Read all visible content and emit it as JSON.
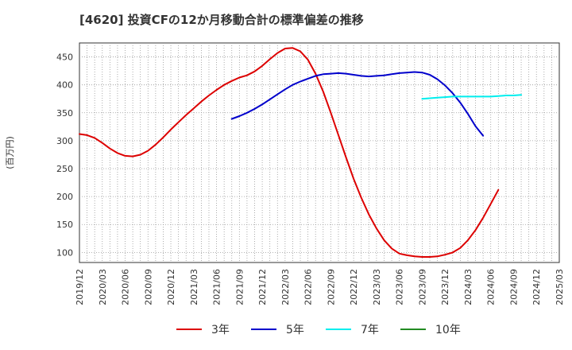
{
  "chart_data": {
    "type": "line",
    "title": "[4620]  投資CFの12か月移動合計の標準偏差の推移",
    "ylabel": "(百万円)",
    "xlabel": "",
    "ylim": [
      82,
      475
    ],
    "yticks": [
      100,
      150,
      200,
      250,
      300,
      350,
      400,
      450
    ],
    "grid": true,
    "legend_position": "bottom",
    "x_ticks": [
      "2019/12",
      "2020/03",
      "2020/06",
      "2020/09",
      "2020/12",
      "2021/03",
      "2021/06",
      "2021/09",
      "2021/12",
      "2022/03",
      "2022/06",
      "2022/09",
      "2022/12",
      "2023/03",
      "2023/06",
      "2023/09",
      "2023/12",
      "2024/03",
      "2024/06",
      "2024/09",
      "2024/12",
      "2025/03"
    ],
    "series": [
      {
        "name": "3年",
        "color": "#dd0000",
        "points": [
          [
            "2019/12",
            312
          ],
          [
            "2020/01",
            310
          ],
          [
            "2020/02",
            305
          ],
          [
            "2020/03",
            296
          ],
          [
            "2020/04",
            286
          ],
          [
            "2020/05",
            278
          ],
          [
            "2020/06",
            273
          ],
          [
            "2020/07",
            272
          ],
          [
            "2020/08",
            275
          ],
          [
            "2020/09",
            282
          ],
          [
            "2020/10",
            293
          ],
          [
            "2020/11",
            306
          ],
          [
            "2020/12",
            320
          ],
          [
            "2021/01",
            333
          ],
          [
            "2021/02",
            346
          ],
          [
            "2021/03",
            358
          ],
          [
            "2021/04",
            370
          ],
          [
            "2021/05",
            381
          ],
          [
            "2021/06",
            391
          ],
          [
            "2021/07",
            400
          ],
          [
            "2021/08",
            407
          ],
          [
            "2021/09",
            413
          ],
          [
            "2021/10",
            417
          ],
          [
            "2021/11",
            424
          ],
          [
            "2021/12",
            434
          ],
          [
            "2022/01",
            446
          ],
          [
            "2022/02",
            457
          ],
          [
            "2022/03",
            465
          ],
          [
            "2022/04",
            466
          ],
          [
            "2022/05",
            460
          ],
          [
            "2022/06",
            445
          ],
          [
            "2022/07",
            420
          ],
          [
            "2022/08",
            388
          ],
          [
            "2022/09",
            350
          ],
          [
            "2022/10",
            310
          ],
          [
            "2022/11",
            270
          ],
          [
            "2022/12",
            232
          ],
          [
            "2023/01",
            198
          ],
          [
            "2023/02",
            168
          ],
          [
            "2023/03",
            143
          ],
          [
            "2023/04",
            122
          ],
          [
            "2023/05",
            107
          ],
          [
            "2023/06",
            98
          ],
          [
            "2023/07",
            95
          ],
          [
            "2023/08",
            93
          ],
          [
            "2023/09",
            92
          ],
          [
            "2023/10",
            92
          ],
          [
            "2023/11",
            93
          ],
          [
            "2023/12",
            96
          ],
          [
            "2024/01",
            100
          ],
          [
            "2024/02",
            108
          ],
          [
            "2024/03",
            122
          ],
          [
            "2024/04",
            140
          ],
          [
            "2024/05",
            162
          ],
          [
            "2024/06",
            187
          ],
          [
            "2024/07",
            212
          ]
        ]
      },
      {
        "name": "5年",
        "color": "#0000cc",
        "points": [
          [
            "2021/08",
            339
          ],
          [
            "2021/09",
            344
          ],
          [
            "2021/10",
            350
          ],
          [
            "2021/11",
            357
          ],
          [
            "2021/12",
            365
          ],
          [
            "2022/01",
            374
          ],
          [
            "2022/02",
            383
          ],
          [
            "2022/03",
            392
          ],
          [
            "2022/04",
            400
          ],
          [
            "2022/05",
            406
          ],
          [
            "2022/06",
            411
          ],
          [
            "2022/07",
            416
          ],
          [
            "2022/08",
            419
          ],
          [
            "2022/09",
            420
          ],
          [
            "2022/10",
            421
          ],
          [
            "2022/11",
            420
          ],
          [
            "2022/12",
            418
          ],
          [
            "2023/01",
            416
          ],
          [
            "2023/02",
            415
          ],
          [
            "2023/03",
            416
          ],
          [
            "2023/04",
            417
          ],
          [
            "2023/05",
            419
          ],
          [
            "2023/06",
            421
          ],
          [
            "2023/07",
            422
          ],
          [
            "2023/08",
            423
          ],
          [
            "2023/09",
            422
          ],
          [
            "2023/10",
            418
          ],
          [
            "2023/11",
            410
          ],
          [
            "2023/12",
            399
          ],
          [
            "2024/01",
            385
          ],
          [
            "2024/02",
            368
          ],
          [
            "2024/03",
            348
          ],
          [
            "2024/04",
            326
          ],
          [
            "2024/05",
            309
          ]
        ]
      },
      {
        "name": "7年",
        "color": "#00eeee",
        "points": [
          [
            "2023/09",
            375
          ],
          [
            "2023/10",
            376
          ],
          [
            "2023/11",
            377
          ],
          [
            "2023/12",
            378
          ],
          [
            "2024/01",
            379
          ],
          [
            "2024/02",
            379
          ],
          [
            "2024/03",
            379
          ],
          [
            "2024/04",
            379
          ],
          [
            "2024/05",
            379
          ],
          [
            "2024/06",
            379
          ],
          [
            "2024/07",
            380
          ],
          [
            "2024/08",
            381
          ],
          [
            "2024/09",
            381
          ],
          [
            "2024/10",
            382
          ]
        ]
      },
      {
        "name": "10年",
        "color": "#228b22",
        "points": []
      }
    ]
  }
}
